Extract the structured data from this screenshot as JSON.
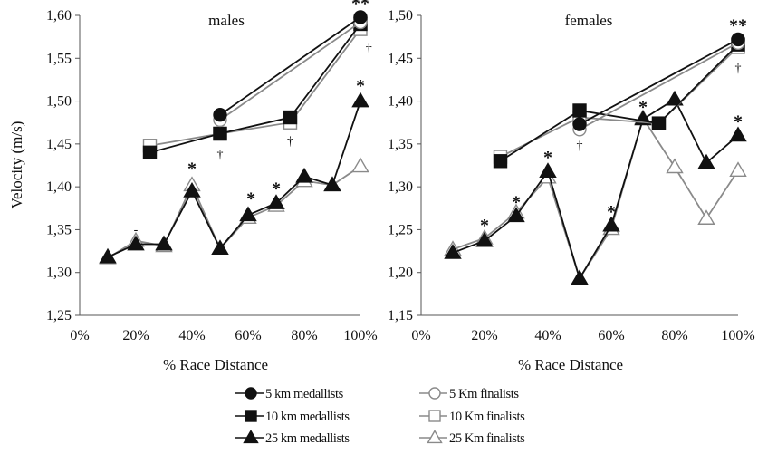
{
  "chart_data": {
    "type": "line",
    "ylabel": "Velocity (m/s)",
    "legend_placement": "bottom-center",
    "series_styles": {
      "5 km medallists": {
        "color": "#111111",
        "marker": "circle",
        "filled": true
      },
      "5 Km finalists": {
        "color": "#8a8a8a",
        "marker": "circle",
        "filled": false
      },
      "10 km medallists": {
        "color": "#111111",
        "marker": "square",
        "filled": true
      },
      "10 Km finalists": {
        "color": "#8a8a8a",
        "marker": "square",
        "filled": false
      },
      "25 km medallists": {
        "color": "#111111",
        "marker": "triangle",
        "filled": true
      },
      "25 Km finalists": {
        "color": "#8a8a8a",
        "marker": "triangle",
        "filled": false
      }
    },
    "legend": [
      "5 km medallists",
      "5 Km finalists",
      "10 km medallists",
      "10 Km finalists",
      "25 km medallists",
      "25 Km finalists"
    ],
    "panels": [
      {
        "title": "males",
        "xlabel": "% Race Distance",
        "xlim": [
          0,
          100
        ],
        "ylim": [
          1.25,
          1.6
        ],
        "x_ticks": [
          0,
          20,
          40,
          60,
          80,
          100
        ],
        "x_tick_labels": [
          "0%",
          "20%",
          "40%",
          "60%",
          "80%",
          "100%"
        ],
        "y_ticks": [
          1.25,
          1.3,
          1.35,
          1.4,
          1.45,
          1.5,
          1.55,
          1.6
        ],
        "y_tick_labels": [
          "1,25",
          "1,30",
          "1,35",
          "1,40",
          "1,45",
          "1,50",
          "1,55",
          "1,60"
        ],
        "series": [
          {
            "name": "5 km medallists",
            "x": [
              50,
              100
            ],
            "y": [
              1.484,
              1.598
            ]
          },
          {
            "name": "5 Km finalists",
            "x": [
              50,
              100
            ],
            "y": [
              1.478,
              1.592
            ]
          },
          {
            "name": "10 km medallists",
            "x": [
              25,
              50,
              75,
              100
            ],
            "y": [
              1.44,
              1.462,
              1.481,
              1.59
            ]
          },
          {
            "name": "10 Km finalists",
            "x": [
              25,
              50,
              75,
              100
            ],
            "y": [
              1.448,
              1.462,
              1.475,
              1.584
            ]
          },
          {
            "name": "25 km medallists",
            "x": [
              10,
              20,
              30,
              40,
              50,
              60,
              70,
              80,
              90,
              100
            ],
            "y": [
              1.318,
              1.333,
              1.333,
              1.395,
              1.328,
              1.367,
              1.381,
              1.412,
              1.402,
              1.5
            ]
          },
          {
            "name": "25 Km finalists",
            "x": [
              10,
              20,
              30,
              40,
              50,
              60,
              70,
              80,
              90,
              100
            ],
            "y": [
              1.317,
              1.337,
              1.331,
              1.402,
              1.328,
              1.364,
              1.378,
              1.407,
              1.402,
              1.424
            ]
          }
        ],
        "annotations": [
          {
            "text": "**",
            "x": 100,
            "y": 1.618,
            "kind": "star"
          },
          {
            "text": "†",
            "x": 103,
            "y": 1.563,
            "kind": "dagger"
          },
          {
            "text": "†",
            "x": 50,
            "y": 1.44,
            "kind": "dagger"
          },
          {
            "text": "†",
            "x": 75,
            "y": 1.455,
            "kind": "dagger"
          },
          {
            "text": "*",
            "x": 100,
            "y": 1.522,
            "kind": "star"
          },
          {
            "text": "*",
            "x": 40,
            "y": 1.425,
            "kind": "star"
          },
          {
            "text": "*",
            "x": 61,
            "y": 1.39,
            "kind": "star"
          },
          {
            "text": "*",
            "x": 70,
            "y": 1.402,
            "kind": "star"
          },
          {
            "text": "-",
            "x": 20,
            "y": 1.352,
            "kind": "dagger"
          }
        ]
      },
      {
        "title": "females",
        "xlabel": "% Race Distance",
        "xlim": [
          0,
          100
        ],
        "ylim": [
          1.15,
          1.5
        ],
        "x_ticks": [
          0,
          20,
          40,
          60,
          80,
          100
        ],
        "x_tick_labels": [
          "0%",
          "20%",
          "40%",
          "60%",
          "80%",
          "100%"
        ],
        "y_ticks": [
          1.15,
          1.2,
          1.25,
          1.3,
          1.35,
          1.4,
          1.45,
          1.5
        ],
        "y_tick_labels": [
          "1,15",
          "1,20",
          "1,25",
          "1,30",
          "1,35",
          "1,40",
          "1,45",
          "1,50"
        ],
        "series": [
          {
            "name": "5 km medallists",
            "x": [
              50,
              100
            ],
            "y": [
              1.373,
              1.472
            ]
          },
          {
            "name": "5 Km finalists",
            "x": [
              50,
              100
            ],
            "y": [
              1.367,
              1.468
            ]
          },
          {
            "name": "10 km medallists",
            "x": [
              25,
              50,
              75,
              100
            ],
            "y": [
              1.33,
              1.389,
              1.374,
              1.466
            ]
          },
          {
            "name": "10 Km finalists",
            "x": [
              25,
              50,
              75,
              100
            ],
            "y": [
              1.335,
              1.381,
              1.374,
              1.463
            ]
          },
          {
            "name": "25 km medallists",
            "x": [
              10,
              20,
              30,
              40,
              50,
              60,
              70,
              80,
              90,
              100
            ],
            "y": [
              1.223,
              1.237,
              1.266,
              1.318,
              1.193,
              1.255,
              1.379,
              1.402,
              1.328,
              1.36
            ]
          },
          {
            "name": "25 Km finalists",
            "x": [
              10,
              20,
              30,
              40,
              50,
              60,
              70,
              80,
              90,
              100
            ],
            "y": [
              1.227,
              1.24,
              1.27,
              1.311,
              1.193,
              1.251,
              1.38,
              1.323,
              1.263,
              1.319
            ]
          }
        ],
        "annotations": [
          {
            "text": "**",
            "x": 100,
            "y": 1.492,
            "kind": "star"
          },
          {
            "text": "†",
            "x": 100,
            "y": 1.44,
            "kind": "dagger"
          },
          {
            "text": "†",
            "x": 50,
            "y": 1.35,
            "kind": "dagger"
          },
          {
            "text": "*",
            "x": 70,
            "y": 1.397,
            "kind": "star"
          },
          {
            "text": "*",
            "x": 100,
            "y": 1.38,
            "kind": "star"
          },
          {
            "text": "*",
            "x": 20,
            "y": 1.259,
            "kind": "star"
          },
          {
            "text": "*",
            "x": 30,
            "y": 1.286,
            "kind": "star"
          },
          {
            "text": "*",
            "x": 40,
            "y": 1.338,
            "kind": "star"
          },
          {
            "text": "*",
            "x": 60,
            "y": 1.275,
            "kind": "star"
          }
        ]
      }
    ]
  }
}
